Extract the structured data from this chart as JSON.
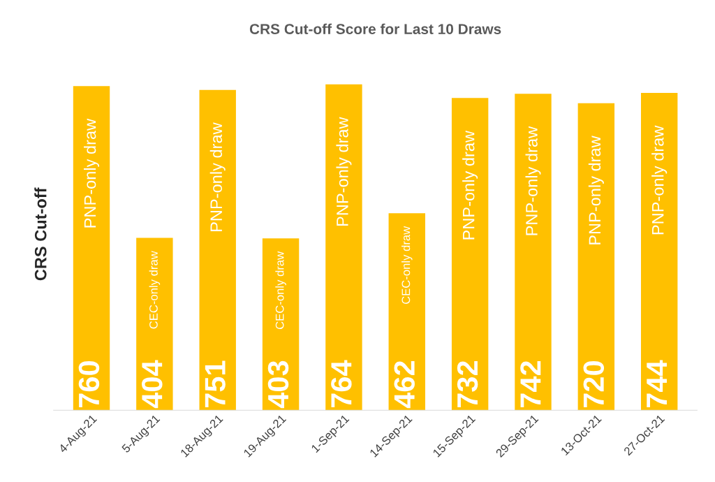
{
  "chart_data": {
    "type": "bar",
    "title": "CRS Cut-off Score for Last 10 Draws",
    "ylabel": "CRS Cut-off",
    "categories": [
      "4-Aug-21",
      "5-Aug-21",
      "18-Aug-21",
      "19-Aug-21",
      "1-Sep-21",
      "14-Sep-21",
      "15-Sep-21",
      "29-Sep-21",
      "13-Oct-21",
      "27-Oct-21"
    ],
    "values": [
      760,
      404,
      751,
      403,
      764,
      462,
      732,
      742,
      720,
      744
    ],
    "color": "#ffc000",
    "data_labels": true,
    "grid": false,
    "legend": false,
    "annotations": [
      "PNP-only draw",
      "CEC-only draw",
      "PNP-only draw",
      "CEC-only draw",
      "PNP-only draw",
      "CEC-only draw",
      "PNP-only draw",
      "PNP-only draw",
      "PNP-only draw",
      "PNP-only draw"
    ]
  }
}
